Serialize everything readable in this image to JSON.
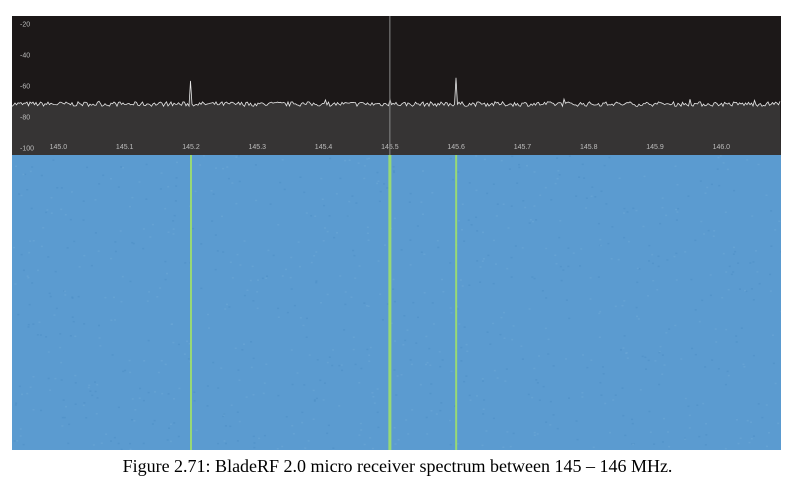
{
  "caption": "Figure 2.71: BladeRF 2.0 micro receiver spectrum between 145 – 146 MHz.",
  "colors": {
    "spectrum_background": "#1c1818",
    "spectrum_fill": "#363434",
    "trace": "#e6e6e6",
    "waterfall": "#5b9bd0",
    "signal_line": "#9ee06a"
  },
  "chart_data": {
    "type": "line",
    "title": "",
    "xlabel": "",
    "ylabel": "",
    "xlim": [
      144.93,
      146.09
    ],
    "ylim": [
      -105,
      -15
    ],
    "x_ticks": [
      "145.0",
      "145.1",
      "145.2",
      "145.3",
      "145.4",
      "145.5",
      "145.6",
      "145.7",
      "145.8",
      "145.9",
      "146.0"
    ],
    "y_ticks": [
      "-20",
      "-40",
      "-60",
      "-80",
      "-100"
    ],
    "noise_floor": -72,
    "peaks": [
      {
        "x": 145.2,
        "y": -57
      },
      {
        "x": 145.5,
        "y": -69
      },
      {
        "x": 145.6,
        "y": -55
      }
    ],
    "center_marker": 145.5,
    "waterfall_signals": [
      145.2,
      145.5,
      145.6
    ],
    "grid": false
  }
}
